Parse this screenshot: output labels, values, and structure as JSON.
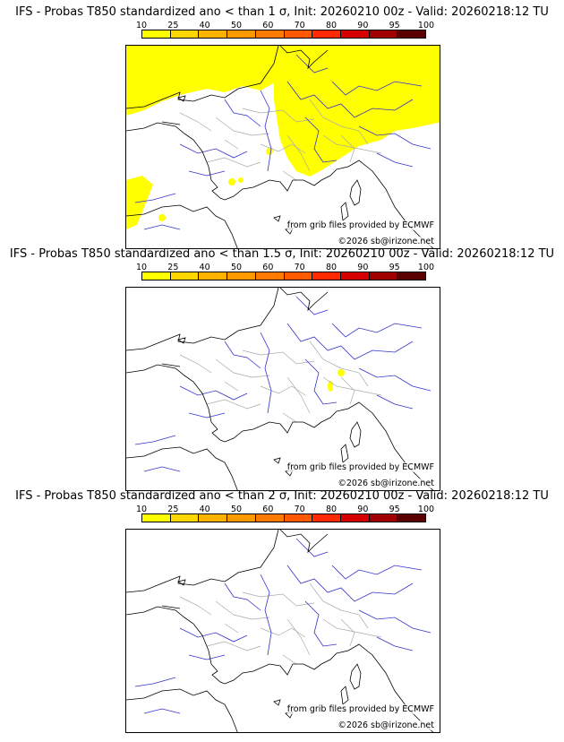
{
  "panels": [
    {
      "title": "IFS - Probas T850  standardized ano < than 1 σ, Init: 20260210 00z - Valid: 20260218:12 TU",
      "credit_grib": "from grib files provided by ECMWF",
      "credit_site": "©2026 sb@irizone.net"
    },
    {
      "title": "IFS - Probas T850  standardized ano < than 1.5 σ, Init: 20260210 00z - Valid: 20260218:12 TU",
      "credit_grib": "from grib files provided by ECMWF",
      "credit_site": "©2026 sb@irizone.net"
    },
    {
      "title": "IFS - Probas T850  standardized ano < than 2 σ, Init: 20260210 00z - Valid: 20260218:12 TU",
      "credit_grib": "from grib files provided by ECMWF",
      "credit_site": "©2026 sb@irizone.net"
    }
  ],
  "colorbar": {
    "ticks": [
      "10",
      "25",
      "40",
      "50",
      "60",
      "70",
      "80",
      "90",
      "95",
      "100"
    ],
    "colors": [
      "#ffff00",
      "#ffd700",
      "#ffb300",
      "#ff9900",
      "#ff7a00",
      "#ff5a00",
      "#ff2a00",
      "#d60000",
      "#a00000",
      "#5a0000"
    ]
  },
  "colors": {
    "coast": "#000000",
    "rivers": "#3333cc",
    "borders": "#aaaaaa",
    "prob_fill": "#ffff00"
  }
}
